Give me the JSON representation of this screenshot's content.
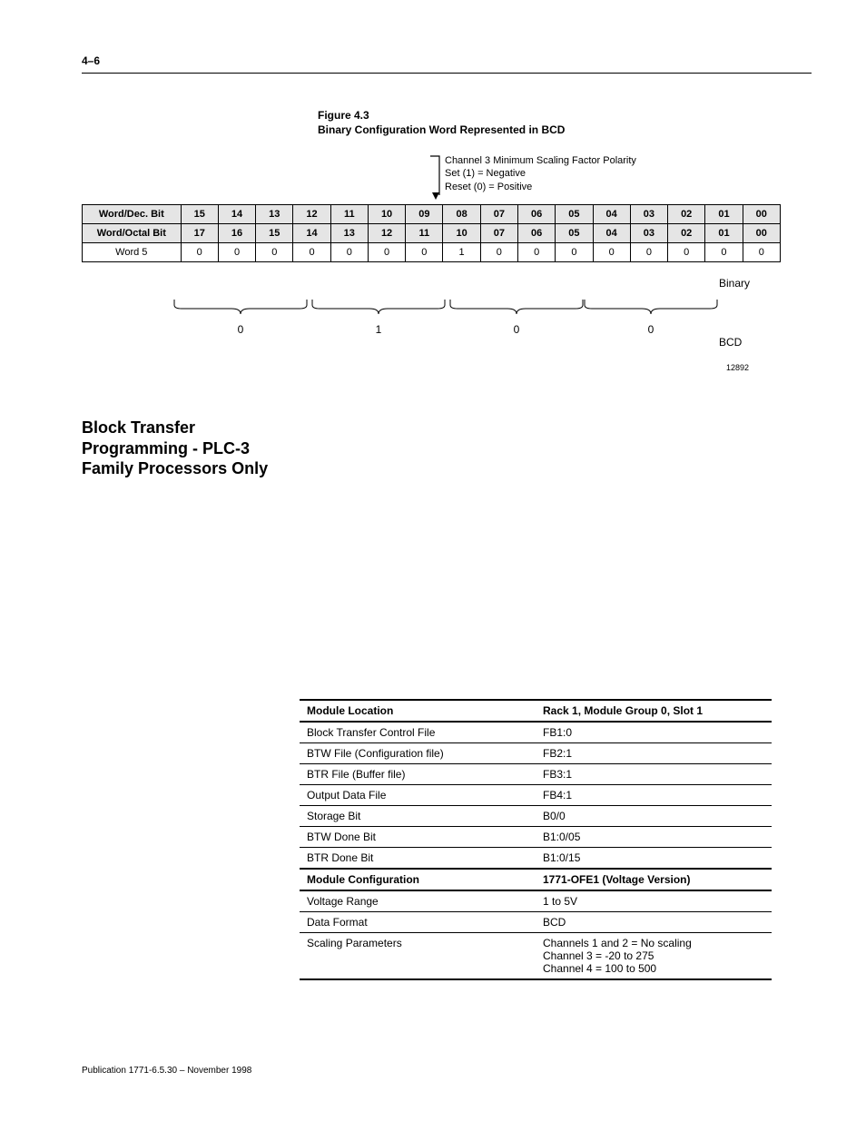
{
  "page_number": "4–6",
  "figure": {
    "label": "Figure 4.3",
    "title": "Binary Configuration Word Represented in BCD"
  },
  "annotation": {
    "line1": "Channel 3 Minimum Scaling Factor Polarity",
    "line2": "Set (1)  =  Negative",
    "line3": "Reset (0)  =  Positive"
  },
  "bit_table": {
    "row1_label": "Word/Dec. Bit",
    "row1": [
      "15",
      "14",
      "13",
      "12",
      "11",
      "10",
      "09",
      "08",
      "07",
      "06",
      "05",
      "04",
      "03",
      "02",
      "01",
      "00"
    ],
    "row2_label": "Word/Octal Bit",
    "row2": [
      "17",
      "16",
      "15",
      "14",
      "13",
      "12",
      "11",
      "10",
      "07",
      "06",
      "05",
      "04",
      "03",
      "02",
      "01",
      "00"
    ],
    "row3_label": "Word 5",
    "row3": [
      "0",
      "0",
      "0",
      "0",
      "0",
      "0",
      "0",
      "1",
      "0",
      "0",
      "0",
      "0",
      "0",
      "0",
      "0",
      "0"
    ]
  },
  "side_labels": {
    "binary": "Binary",
    "bcd": "BCD",
    "docnum": "12892"
  },
  "bcd_groups": [
    "0",
    "1",
    "0",
    "0"
  ],
  "section_title_l1": "Block Transfer",
  "section_title_l2": "Programming - PLC-3",
  "section_title_l3": "Family Processors Only",
  "config_rows": [
    {
      "k": "Module Location",
      "v": "Rack 1, Module Group 0, Slot 1",
      "bold": true
    },
    {
      "k": "Block Transfer Control File",
      "v": "FB1:0"
    },
    {
      "k": "BTW File (Configuration file)",
      "v": "FB2:1"
    },
    {
      "k": "BTR File (Buffer file)",
      "v": "FB3:1"
    },
    {
      "k": "Output Data File",
      "v": "FB4:1"
    },
    {
      "k": "Storage Bit",
      "v": "B0/0"
    },
    {
      "k": "BTW Done Bit",
      "v": "B1:0/05"
    },
    {
      "k": "BTR Done Bit",
      "v": "B1:0/15"
    },
    {
      "k": "Module Configuration",
      "v": "1771-OFE1 (Voltage Version)",
      "bold": true
    },
    {
      "k": "Voltage Range",
      "v": "1 to 5V"
    },
    {
      "k": "Data Format",
      "v": "BCD"
    },
    {
      "k": "Scaling Parameters",
      "v": "Channels 1 and 2 = No scaling\nChannel 3 = -20 to 275\nChannel 4 = 100 to 500"
    }
  ],
  "footer": "Publication 1771-6.5.30 – November 1998"
}
